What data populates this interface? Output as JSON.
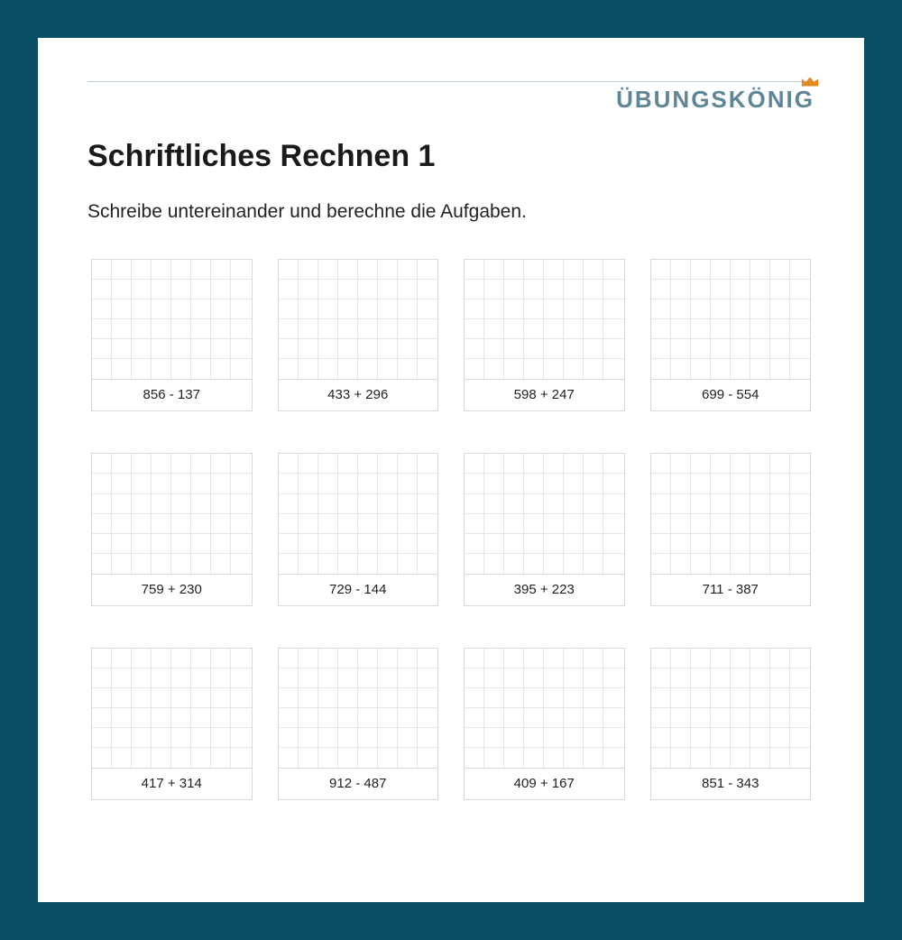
{
  "brand": {
    "text": "ÜBUNGSKÖNIG",
    "color": "#5f8697",
    "crown_color": "#e08a1e"
  },
  "title": "Schriftliches Rechnen 1",
  "instruction": "Schreibe untereinander und berechne die Aufgaben.",
  "worksheet": {
    "type": "table",
    "columns": 4,
    "rows": 3,
    "grid_cells_cols": 8,
    "grid_cells_rows": 6,
    "page_bg": "#ffffff",
    "outer_bg": "#0a4f64",
    "cell_border_color": "#e6e6e6",
    "box_border_color": "#d9d9d9",
    "label_fontsize": 15,
    "title_fontsize": 34,
    "instruction_fontsize": 21
  },
  "problems": [
    "856 - 137",
    "433 + 296",
    "598 + 247",
    "699 - 554",
    "759 + 230",
    "729 - 144",
    "395 + 223",
    "711 - 387",
    "417 + 314",
    "912 - 487",
    "409 + 167",
    "851 - 343"
  ]
}
